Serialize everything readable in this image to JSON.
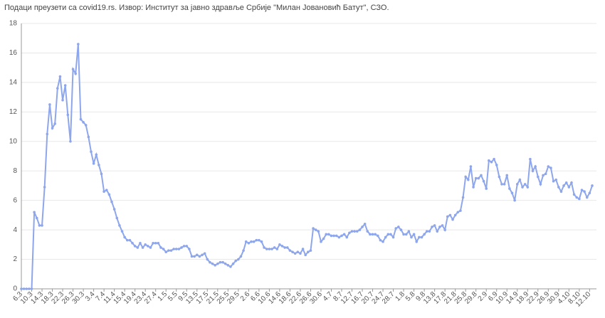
{
  "chart_data": {
    "type": "line",
    "source": "Подаци преузети са covid19.rs. Извор: Институт за јавно здравље Србије \"Милан Јовановић Батут\", СЗО.",
    "categories": [
      "6.3",
      null,
      null,
      null,
      "10.3",
      null,
      null,
      null,
      "14.3",
      null,
      null,
      null,
      "18.3",
      null,
      null,
      null,
      "22.3",
      null,
      null,
      null,
      "26.3",
      null,
      null,
      null,
      "30.3",
      null,
      null,
      null,
      "3.4",
      null,
      null,
      null,
      "7.4",
      null,
      null,
      null,
      "11.4",
      null,
      null,
      null,
      "15.4",
      null,
      null,
      null,
      "19.4",
      null,
      null,
      null,
      "23.4",
      null,
      null,
      null,
      "27.4",
      null,
      null,
      null,
      "1.5",
      null,
      null,
      null,
      "5.5",
      null,
      null,
      null,
      "9.5",
      null,
      null,
      null,
      "13.5",
      null,
      null,
      null,
      "17.5",
      null,
      null,
      null,
      "21.5",
      null,
      null,
      null,
      "25.5",
      null,
      null,
      null,
      "29.5",
      null,
      null,
      null,
      "2.6",
      null,
      null,
      null,
      "6.6",
      null,
      null,
      null,
      "10.6",
      null,
      null,
      null,
      "14.6",
      null,
      null,
      null,
      "18.6",
      null,
      null,
      null,
      "22.6",
      null,
      null,
      null,
      "26.6",
      null,
      null,
      null,
      "30.6",
      null,
      null,
      null,
      "4.7",
      null,
      null,
      null,
      "8.7",
      null,
      null,
      null,
      "12.7",
      null,
      null,
      null,
      "16.7",
      null,
      null,
      null,
      "20.7",
      null,
      null,
      null,
      "24.7",
      null,
      null,
      null,
      "28.7",
      null,
      null,
      null,
      "1.8",
      null,
      null,
      null,
      "5.8",
      null,
      null,
      null,
      "9.8",
      null,
      null,
      null,
      "13.8",
      null,
      null,
      null,
      "17.8",
      null,
      null,
      null,
      "21.8",
      null,
      null,
      null,
      "25.8",
      null,
      null,
      null,
      "29.8",
      null,
      null,
      null,
      "2.9",
      null,
      null,
      null,
      "6.9",
      null,
      null,
      null,
      "10.9",
      null,
      null,
      null,
      "14.9",
      null,
      null,
      null,
      "18.9",
      null,
      null,
      null,
      "22.9",
      null,
      null,
      null,
      "26.9",
      null,
      null,
      null,
      "30.9",
      null,
      null,
      null,
      "4.10",
      null,
      null,
      null,
      "8.10",
      null,
      null,
      null,
      "12.10",
      null
    ],
    "values": [
      0,
      0,
      0,
      0,
      0,
      5.2,
      4.8,
      4.3,
      4.3,
      6.9,
      10.5,
      12.5,
      10.9,
      11.2,
      13.6,
      14.4,
      12.8,
      13.8,
      11.8,
      10.0,
      14.9,
      14.6,
      16.6,
      11.5,
      11.3,
      11.1,
      10.3,
      9.3,
      8.5,
      9.1,
      8.4,
      7.8,
      6.6,
      6.7,
      6.4,
      5.9,
      5.4,
      4.8,
      4.3,
      3.9,
      3.5,
      3.3,
      3.3,
      3.1,
      2.9,
      2.8,
      3.1,
      2.8,
      3.0,
      2.9,
      2.8,
      3.1,
      3.1,
      3.1,
      2.8,
      2.7,
      2.5,
      2.6,
      2.6,
      2.7,
      2.7,
      2.7,
      2.8,
      2.9,
      2.9,
      2.7,
      2.2,
      2.2,
      2.3,
      2.2,
      2.3,
      2.4,
      2.0,
      1.8,
      1.7,
      1.6,
      1.7,
      1.8,
      1.8,
      1.7,
      1.6,
      1.5,
      1.7,
      1.9,
      2.0,
      2.2,
      2.6,
      3.2,
      3.1,
      3.2,
      3.2,
      3.3,
      3.3,
      3.2,
      2.8,
      2.7,
      2.7,
      2.7,
      2.8,
      2.7,
      3.0,
      2.9,
      2.8,
      2.8,
      2.6,
      2.5,
      2.4,
      2.5,
      2.4,
      2.7,
      2.3,
      2.5,
      2.6,
      4.1,
      4.0,
      3.9,
      3.2,
      3.4,
      3.7,
      3.7,
      3.6,
      3.6,
      3.6,
      3.5,
      3.6,
      3.7,
      3.5,
      3.8,
      3.9,
      3.9,
      3.9,
      4.0,
      4.2,
      4.4,
      3.9,
      3.7,
      3.7,
      3.7,
      3.6,
      3.3,
      3.2,
      3.5,
      3.7,
      3.7,
      3.5,
      4.1,
      4.2,
      4.0,
      3.7,
      3.7,
      3.9,
      3.5,
      3.7,
      3.2,
      3.5,
      3.5,
      3.7,
      3.9,
      3.9,
      4.2,
      4.3,
      3.9,
      4.2,
      4.3,
      4.0,
      4.9,
      5.0,
      4.7,
      5.0,
      5.2,
      5.3,
      6.2,
      7.6,
      7.4,
      8.3,
      6.9,
      7.5,
      7.5,
      7.7,
      7.3,
      6.8,
      8.7,
      8.6,
      8.8,
      8.4,
      7.6,
      7.1,
      7.1,
      7.7,
      6.8,
      6.5,
      6.0,
      7.1,
      7.4,
      6.9,
      7.1,
      6.9,
      8.8,
      8.0,
      8.3,
      7.6,
      7.1,
      7.7,
      7.8,
      8.3,
      8.2,
      7.3,
      7.4,
      6.9,
      6.6,
      7.0,
      7.2,
      6.9,
      7.2,
      6.4,
      6.2,
      6.1,
      6.7,
      6.6,
      6.2,
      6.5,
      7.0
    ],
    "color": "#8ea6ec",
    "ylim": [
      0,
      18
    ],
    "yticks": [
      0,
      2,
      4,
      6,
      8,
      10,
      12,
      14,
      16,
      18
    ],
    "grid": true
  }
}
